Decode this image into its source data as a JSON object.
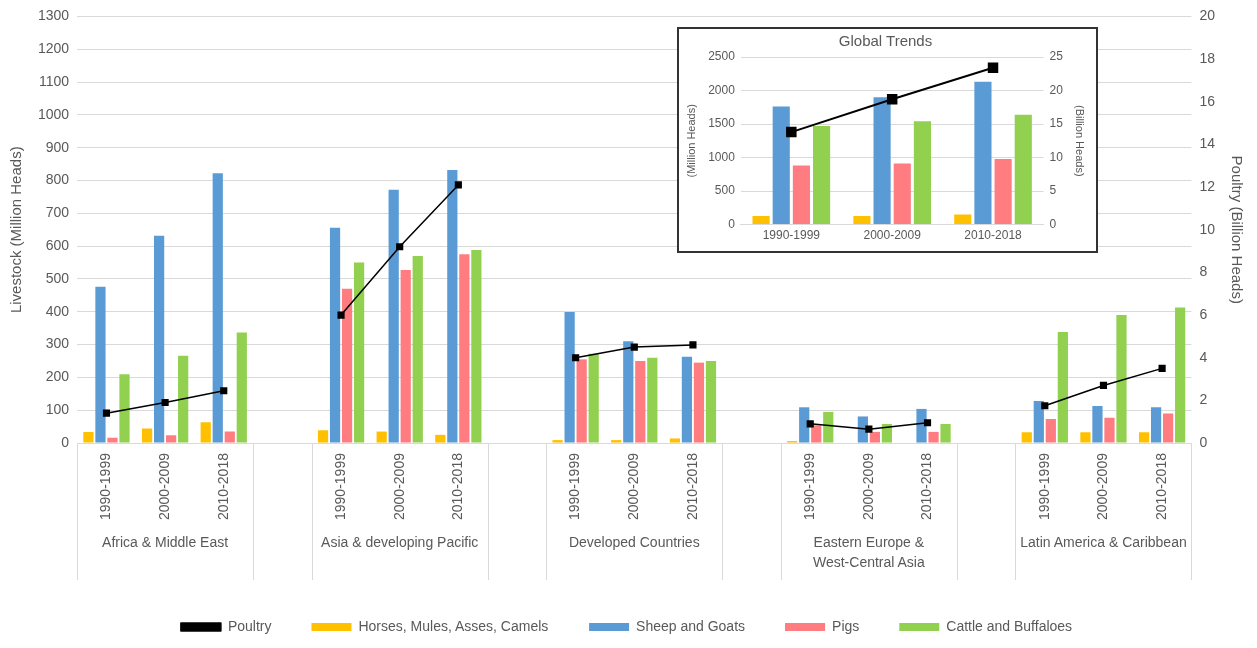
{
  "chart_data": [
    {
      "type": "bar",
      "categories": [
        "1990-1999",
        "2000-2009",
        "2010-2018",
        null,
        "1990-1999",
        "2000-2009",
        "2010-2018",
        null,
        "1990-1999",
        "2000-2009",
        "2010-2018",
        null,
        "1990-1999",
        "2000-2009",
        "2010-2018",
        null,
        "1990-1999",
        "2000-2009",
        "2010-2018"
      ],
      "series": [
        {
          "name": "Horses, Mules, Asses, Camels",
          "color": "#ffc000",
          "values": [
            34,
            44,
            63,
            null,
            39,
            35,
            25,
            null,
            9,
            9,
            14,
            null,
            6,
            0,
            0,
            null,
            33,
            33,
            33
          ]
        },
        {
          "name": "Sheep and Goats",
          "color": "#5b9bd5",
          "values": [
            476,
            632,
            822,
            null,
            656,
            772,
            832,
            null,
            399,
            310,
            263,
            null,
            109,
            81,
            104,
            null,
            128,
            113,
            109
          ]
        },
        {
          "name": "Pigs",
          "color": "#ff7c80",
          "values": [
            16,
            24,
            35,
            null,
            470,
            527,
            575,
            null,
            255,
            250,
            245,
            null,
            54,
            34,
            34,
            null,
            73,
            77,
            90
          ]
        },
        {
          "name": "Cattle and Buffaloes",
          "color": "#92d050",
          "values": [
            210,
            266,
            337,
            null,
            550,
            570,
            588,
            null,
            272,
            260,
            250,
            null,
            95,
            58,
            58,
            null,
            338,
            390,
            413
          ]
        },
        {
          "name": "Poultry",
          "type": "line",
          "axis": "y2",
          "marker": "square",
          "color": "#000000",
          "values": [
            1.4,
            1.9,
            2.45,
            null,
            6.0,
            9.2,
            12.1,
            null,
            4.0,
            4.5,
            4.6,
            null,
            0.9,
            0.65,
            0.95,
            null,
            1.75,
            2.7,
            3.5
          ]
        }
      ],
      "ylabel": "Livestock (Million Heads)",
      "y2label": "Poultry (Billion Heads)",
      "ylim": [
        0,
        1300
      ],
      "yticks": [
        0,
        100,
        200,
        300,
        400,
        500,
        600,
        700,
        800,
        900,
        1000,
        1100,
        1200,
        1300
      ],
      "y2lim": [
        0,
        20
      ],
      "y2ticks": [
        0,
        2,
        4,
        6,
        8,
        10,
        12,
        14,
        16,
        18,
        20
      ],
      "grid": "y",
      "legend": "bottom",
      "annotations": [
        "Africa & Middle East",
        "Asia & developing Pacific",
        "Developed Countries",
        "Eastern Europe & West-Central Asia",
        "Latin America & Caribbean"
      ]
    },
    {
      "type": "bar",
      "title": "Global Trends",
      "categories": [
        "1990-1999",
        "2000-2009",
        "2010-2018"
      ],
      "series": [
        {
          "color": "#ffc000",
          "values": [
            130,
            130,
            150
          ]
        },
        {
          "color": "#5b9bd5",
          "values": [
            1760,
            1900,
            2130
          ]
        },
        {
          "color": "#ff7c80",
          "values": [
            880,
            910,
            980
          ]
        },
        {
          "color": "#92d050",
          "values": [
            1470,
            1540,
            1640
          ]
        },
        {
          "type": "line",
          "axis": "y2",
          "marker": "square",
          "color": "#000000",
          "values": [
            13.8,
            18.7,
            23.4
          ]
        }
      ],
      "ylabel": "(Million Heads)",
      "y2label": "(Billion Heads)",
      "ylim": [
        0,
        2500
      ],
      "yticks": [
        0,
        500,
        1000,
        1500,
        2000,
        2500
      ],
      "y2lim": [
        0,
        25
      ],
      "y2ticks": [
        0,
        5,
        10,
        15,
        20,
        25
      ],
      "grid": "y",
      "legend": false
    }
  ]
}
